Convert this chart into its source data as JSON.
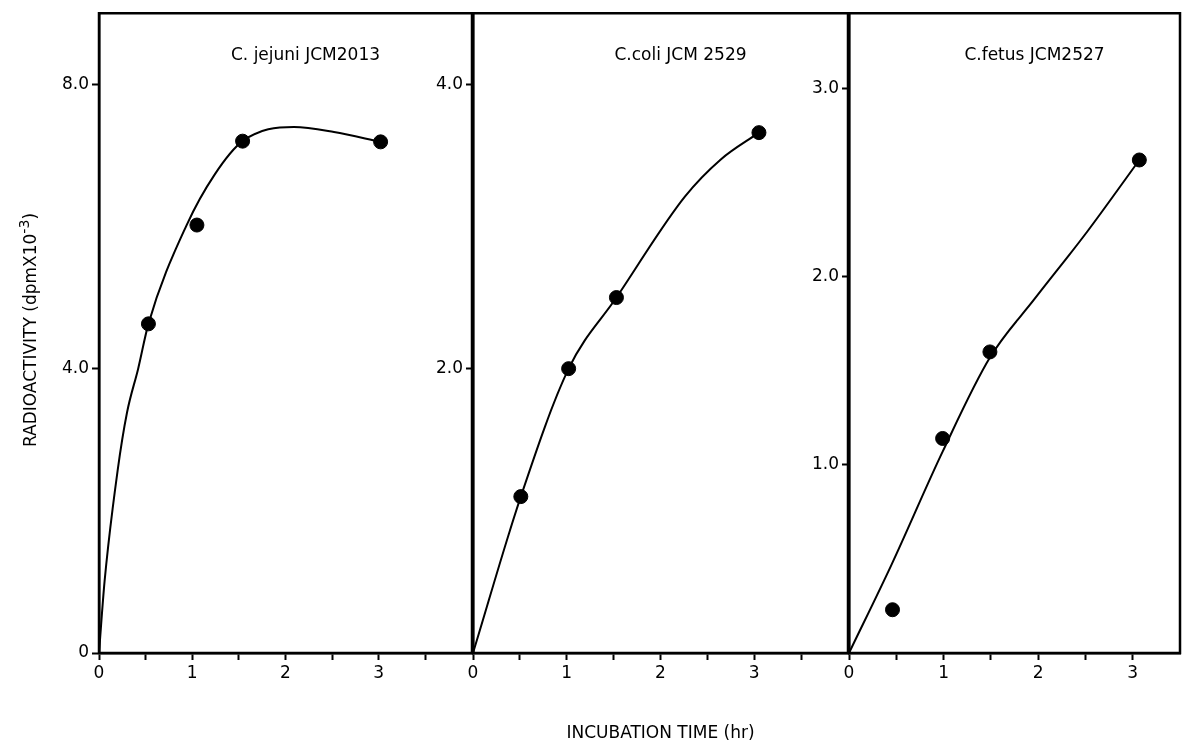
{
  "chart_data": [
    {
      "type": "scatter",
      "title": "C. jejuni JCM2013",
      "ylabel": "RADIOACTIVITY (dpmX10$^{-3}$)",
      "xlim": [
        0,
        4
      ],
      "ylim": [
        0,
        9
      ],
      "xticks": [
        0,
        {
          "value": 0.5,
          "label": null
        },
        1,
        {
          "value": 1.5,
          "label": null
        },
        2,
        {
          "value": 2.5,
          "label": null
        },
        3,
        {
          "value": 3.5,
          "label": null
        }
      ],
      "yticks": [
        0,
        {
          "value": 4,
          "label": "4.0"
        },
        {
          "value": 8,
          "label": "8.0"
        }
      ],
      "grid": false,
      "legend": false,
      "marker": "circle",
      "series": [
        {
          "color": "#000000",
          "x": [
            0.53,
            1.05,
            1.54,
            3.02
          ],
          "values": [
            4.63,
            6.02,
            7.2,
            7.19
          ]
        },
        {
          "type": "line",
          "marker": "none",
          "line_style": "solid",
          "color": "#000000",
          "x": [
            0,
            0.06,
            0.2,
            0.3,
            0.42,
            0.53,
            0.94,
            1.24,
            1.54,
            2.09,
            2.52,
            3.02
          ],
          "values": [
            0,
            1.01,
            2.57,
            3.38,
            4.0,
            4.63,
            6.02,
            6.73,
            7.2,
            7.4,
            7.33,
            7.19
          ]
        }
      ]
    },
    {
      "type": "scatter",
      "title": "C.coli JCM 2529",
      "xlabel": "INCUBATION TIME (hr)",
      "xlim": [
        0,
        4
      ],
      "ylim": [
        0,
        4.5
      ],
      "xticks": [
        0,
        {
          "value": 0.5,
          "label": null
        },
        1,
        {
          "value": 1.5,
          "label": null
        },
        2,
        {
          "value": 2.5,
          "label": null
        },
        3,
        {
          "value": 3.5,
          "label": null
        }
      ],
      "yticks": [
        {
          "value": 2,
          "label": "2.0"
        },
        {
          "value": 4,
          "label": "4.0"
        }
      ],
      "grid": false,
      "legend": false,
      "marker": "circle",
      "series": [
        {
          "color": "#000000",
          "x": [
            0.51,
            1.02,
            1.53,
            3.05
          ],
          "values": [
            1.1,
            2.0,
            2.5,
            3.66
          ]
        },
        {
          "type": "line",
          "marker": "none",
          "line_style": "solid",
          "color": "#000000",
          "x": [
            0,
            0.51,
            1.02,
            1.53,
            2.26,
            2.64,
            3.05
          ],
          "values": [
            0,
            1.1,
            2.0,
            2.5,
            3.21,
            3.47,
            3.66
          ]
        }
      ]
    },
    {
      "type": "scatter",
      "title": "C.fetus JCM2527",
      "xlim": [
        0,
        3.5
      ],
      "ylim": [
        0,
        3.4
      ],
      "xticks": [
        0,
        {
          "value": 0.5,
          "label": null
        },
        1,
        {
          "value": 1.5,
          "label": null
        },
        2,
        {
          "value": 2.5,
          "label": null
        },
        3
      ],
      "yticks": [
        {
          "value": 1,
          "label": "1.0"
        },
        {
          "value": 2,
          "label": "2.0"
        },
        {
          "value": 3,
          "label": "3.0"
        }
      ],
      "grid": false,
      "legend": false,
      "marker": "circle",
      "series": [
        {
          "color": "#000000",
          "x": [
            0.46,
            0.99,
            1.49,
            3.07
          ],
          "values": [
            0.23,
            1.14,
            1.6,
            2.62
          ]
        },
        {
          "type": "line",
          "marker": "none",
          "line_style": "solid",
          "color": "#000000",
          "x": [
            0,
            0.45,
            0.99,
            1.49,
            1.96,
            2.52,
            3.07
          ],
          "values": [
            0,
            0.47,
            1.07,
            1.57,
            1.88,
            2.24,
            2.62
          ]
        }
      ]
    }
  ]
}
